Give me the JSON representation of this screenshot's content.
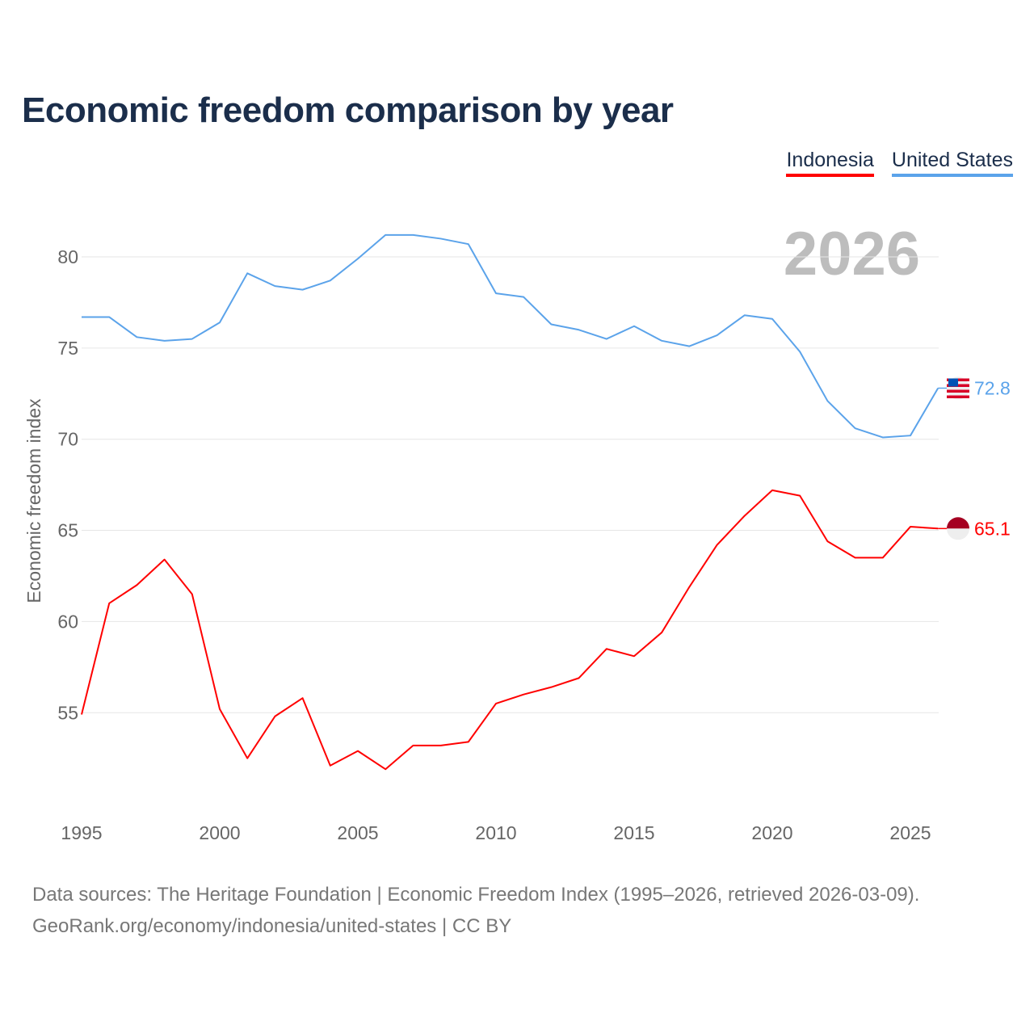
{
  "title": "Economic freedom comparison by year",
  "chart_data": {
    "type": "line",
    "title": "Economic freedom comparison by year",
    "ylabel": "Economic freedom index",
    "xlabel": "",
    "current_year_label": "2026",
    "x": [
      1995,
      1996,
      1997,
      1998,
      1999,
      2000,
      2001,
      2002,
      2003,
      2004,
      2005,
      2006,
      2007,
      2008,
      2009,
      2010,
      2011,
      2012,
      2013,
      2014,
      2015,
      2016,
      2017,
      2018,
      2019,
      2020,
      2021,
      2022,
      2023,
      2024,
      2025,
      2026
    ],
    "x_ticks": [
      "1995",
      "2000",
      "2005",
      "2010",
      "2015",
      "2020",
      "2025"
    ],
    "y_ticks": [
      "55",
      "60",
      "65",
      "70",
      "75",
      "80"
    ],
    "ylim": [
      50.5,
      82.5
    ],
    "grid": true,
    "legend_position": "top-right",
    "series": [
      {
        "name": "Indonesia",
        "color": "#ff0000",
        "end_label": "65.1",
        "values": [
          54.9,
          61.0,
          62.0,
          63.4,
          61.5,
          55.2,
          52.5,
          54.8,
          55.8,
          52.1,
          52.9,
          51.9,
          53.2,
          53.2,
          53.4,
          55.5,
          56.0,
          56.4,
          56.9,
          58.5,
          58.1,
          59.4,
          61.9,
          64.2,
          65.8,
          67.2,
          66.9,
          64.4,
          63.5,
          63.5,
          65.2,
          65.1
        ]
      },
      {
        "name": "United States",
        "color": "#5ba3ea",
        "end_label": "72.8",
        "values": [
          76.7,
          76.7,
          75.6,
          75.4,
          75.5,
          76.4,
          79.1,
          78.4,
          78.2,
          78.7,
          79.9,
          81.2,
          81.2,
          81.0,
          80.7,
          78.0,
          77.8,
          76.3,
          76.0,
          75.5,
          76.2,
          75.4,
          75.1,
          75.7,
          76.8,
          76.6,
          74.8,
          72.1,
          70.6,
          70.1,
          70.2,
          72.8
        ]
      }
    ]
  },
  "footer": {
    "line1": "Data sources: The Heritage Foundation | Economic Freedom Index (1995–2026, retrieved 2026-03-09).",
    "line2": "GeoRank.org/economy/indonesia/united-states | CC BY"
  }
}
